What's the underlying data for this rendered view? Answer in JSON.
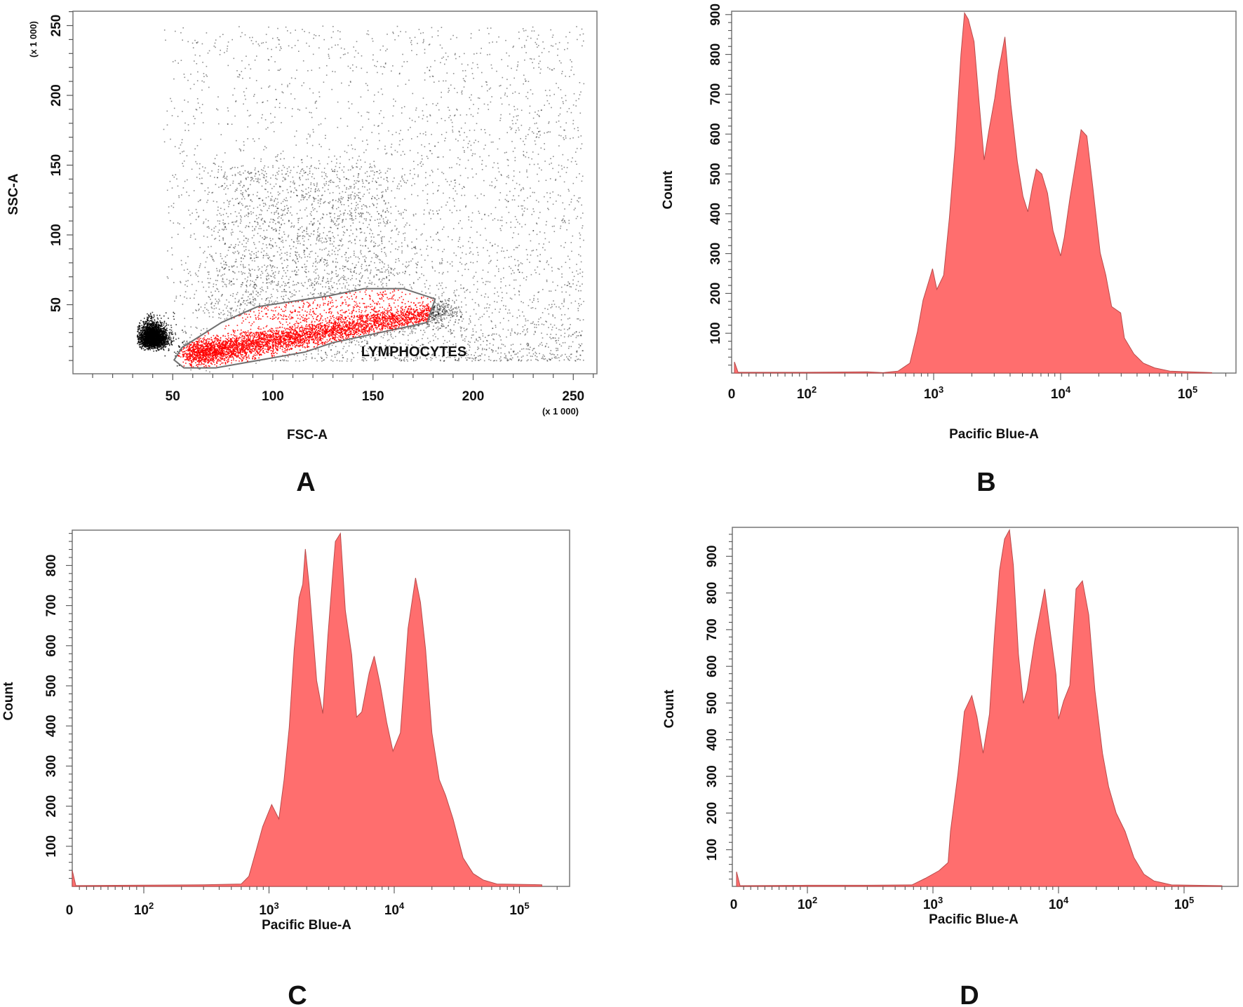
{
  "colors": {
    "histogram_fill": "#ff6e6e",
    "histogram_stroke": "#b84a4a",
    "gated_events": "#ff0000",
    "ungated_events": "#000000",
    "gate_outline": "#707070"
  },
  "chart_data": [
    {
      "panel": "A",
      "type": "scatter",
      "xlabel": "FSC-A",
      "ylabel": "SSC-A",
      "x_unit": "(x 1 000)",
      "y_unit": "(x 1 000)",
      "xlim": [
        0,
        262
      ],
      "ylim": [
        0,
        260
      ],
      "xticks": [
        "50",
        "100",
        "150",
        "200",
        "250"
      ],
      "yticks": [
        "50",
        "100",
        "150",
        "200",
        "250"
      ],
      "gate": {
        "name": "LYMPHOCYTES",
        "polygon": [
          [
            50.7,
            10.4
          ],
          [
            55.6,
            4.7
          ],
          [
            71.4,
            4.7
          ],
          [
            115.9,
            16
          ],
          [
            129.7,
            22.7
          ],
          [
            177.1,
            37.3
          ],
          [
            181,
            54.1
          ],
          [
            165.3,
            61.5
          ],
          [
            145.5,
            61.5
          ],
          [
            127.7,
            56.3
          ],
          [
            92.2,
            48.5
          ],
          [
            74.4,
            37.3
          ],
          [
            54.6,
            19.3
          ]
        ]
      }
    },
    {
      "panel": "B",
      "type": "area",
      "xlabel": "Pacific Blue-A",
      "ylabel": "Count",
      "x_scale": "biexponential",
      "xticks": [
        "0",
        "10^2",
        "10^3",
        "10^4",
        "10^5"
      ],
      "yticks": [
        "100",
        "200",
        "300",
        "400",
        "500",
        "600",
        "700",
        "800",
        "900"
      ],
      "ylim": [
        0,
        910
      ],
      "points": [
        [
          0,
          28
        ],
        [
          5,
          2
        ],
        [
          100,
          2
        ],
        [
          300,
          3
        ],
        [
          400,
          1
        ],
        [
          525,
          5
        ],
        [
          650,
          25
        ],
        [
          745,
          104
        ],
        [
          825,
          183
        ],
        [
          915,
          230
        ],
        [
          980,
          262
        ],
        [
          1060,
          210
        ],
        [
          1200,
          246
        ],
        [
          1330,
          389
        ],
        [
          1480,
          571
        ],
        [
          1640,
          800
        ],
        [
          1750,
          904
        ],
        [
          1875,
          888
        ],
        [
          2080,
          832
        ],
        [
          2300,
          666
        ],
        [
          2500,
          535
        ],
        [
          2730,
          610
        ],
        [
          3030,
          690
        ],
        [
          3240,
          757
        ],
        [
          3640,
          844
        ],
        [
          4060,
          674
        ],
        [
          4560,
          531
        ],
        [
          5050,
          444
        ],
        [
          5520,
          405
        ],
        [
          6000,
          468
        ],
        [
          6430,
          512
        ],
        [
          7100,
          500
        ],
        [
          7880,
          452
        ],
        [
          8720,
          357
        ],
        [
          10000,
          294
        ],
        [
          10700,
          341
        ],
        [
          11800,
          436
        ],
        [
          13100,
          524
        ],
        [
          14500,
          611
        ],
        [
          16100,
          595
        ],
        [
          17900,
          468
        ],
        [
          20500,
          302
        ],
        [
          22700,
          246
        ],
        [
          25200,
          167
        ],
        [
          29700,
          151
        ],
        [
          31800,
          88
        ],
        [
          37800,
          48
        ],
        [
          44800,
          25
        ],
        [
          55000,
          13
        ],
        [
          72500,
          5
        ],
        [
          155000,
          1
        ]
      ]
    },
    {
      "panel": "C",
      "type": "area",
      "xlabel": "Pacific Blue-A",
      "ylabel": "Count",
      "x_scale": "biexponential",
      "xticks": [
        "0",
        "10^2",
        "10^3",
        "10^4",
        "10^5"
      ],
      "yticks": [
        "100",
        "200",
        "300",
        "400",
        "500",
        "600",
        "700",
        "800"
      ],
      "ylim": [
        0,
        890
      ],
      "points": [
        [
          0,
          40
        ],
        [
          5,
          2
        ],
        [
          100,
          3
        ],
        [
          300,
          4
        ],
        [
          600,
          6
        ],
        [
          690,
          25
        ],
        [
          790,
          90
        ],
        [
          890,
          149
        ],
        [
          980,
          181
        ],
        [
          1050,
          204
        ],
        [
          1200,
          168
        ],
        [
          1320,
          266
        ],
        [
          1450,
          396
        ],
        [
          1590,
          591
        ],
        [
          1740,
          720
        ],
        [
          1860,
          753
        ],
        [
          1950,
          841
        ],
        [
          2090,
          753
        ],
        [
          2400,
          513
        ],
        [
          2690,
          431
        ],
        [
          2950,
          623
        ],
        [
          3240,
          786
        ],
        [
          3390,
          860
        ],
        [
          3720,
          880
        ],
        [
          4070,
          688
        ],
        [
          4570,
          578
        ],
        [
          5010,
          422
        ],
        [
          5500,
          435
        ],
        [
          6310,
          532
        ],
        [
          6920,
          574
        ],
        [
          7760,
          500
        ],
        [
          8710,
          409
        ],
        [
          9770,
          337
        ],
        [
          11200,
          383
        ],
        [
          12900,
          643
        ],
        [
          14800,
          769
        ],
        [
          16200,
          708
        ],
        [
          17800,
          591
        ],
        [
          20000,
          383
        ],
        [
          22900,
          266
        ],
        [
          25700,
          227
        ],
        [
          29500,
          168
        ],
        [
          35500,
          71
        ],
        [
          42700,
          32
        ],
        [
          51300,
          16
        ],
        [
          66100,
          6
        ],
        [
          151000,
          4
        ]
      ]
    },
    {
      "panel": "D",
      "type": "area",
      "xlabel": "Pacific Blue-A",
      "ylabel": "Count",
      "x_scale": "biexponential",
      "xticks": [
        "0",
        "10^2",
        "10^3",
        "10^4",
        "10^5"
      ],
      "yticks": [
        "100",
        "200",
        "300",
        "400",
        "500",
        "600",
        "700",
        "800",
        "900"
      ],
      "ylim": [
        0,
        1000
      ],
      "points": [
        [
          0,
          40
        ],
        [
          5,
          2
        ],
        [
          100,
          3
        ],
        [
          300,
          3
        ],
        [
          680,
          4
        ],
        [
          870,
          22
        ],
        [
          1120,
          43
        ],
        [
          1320,
          65
        ],
        [
          1380,
          150
        ],
        [
          1580,
          307
        ],
        [
          1780,
          477
        ],
        [
          2040,
          520
        ],
        [
          2240,
          463
        ],
        [
          2510,
          363
        ],
        [
          2820,
          470
        ],
        [
          3090,
          683
        ],
        [
          3390,
          861
        ],
        [
          3720,
          947
        ],
        [
          4070,
          972
        ],
        [
          4370,
          876
        ],
        [
          4790,
          634
        ],
        [
          5250,
          499
        ],
        [
          5620,
          534
        ],
        [
          6460,
          669
        ],
        [
          7080,
          740
        ],
        [
          7760,
          811
        ],
        [
          8510,
          705
        ],
        [
          9550,
          577
        ],
        [
          10000,
          456
        ],
        [
          11000,
          506
        ],
        [
          12300,
          548
        ],
        [
          13800,
          811
        ],
        [
          15500,
          833
        ],
        [
          17400,
          740
        ],
        [
          19500,
          534
        ],
        [
          22400,
          363
        ],
        [
          25100,
          271
        ],
        [
          28800,
          200
        ],
        [
          33900,
          150
        ],
        [
          39800,
          79
        ],
        [
          47900,
          33
        ],
        [
          57500,
          15
        ],
        [
          79400,
          4
        ],
        [
          200000,
          2
        ]
      ]
    }
  ],
  "panel_letters": [
    "A",
    "B",
    "C",
    "D"
  ]
}
